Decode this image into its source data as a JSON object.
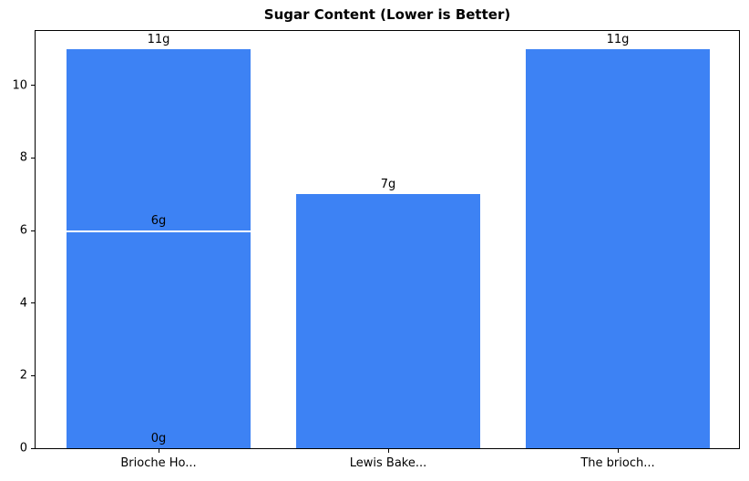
{
  "chart_data": {
    "type": "bar",
    "title": "Sugar Content (Lower is Better)",
    "categories": [
      "Brioche Ho...",
      "Lewis Bake...",
      "The brioch..."
    ],
    "bars": [
      {
        "category": "Brioche Ho...",
        "values": [
          11,
          6,
          0
        ],
        "labels": [
          "11g",
          "6g",
          "0g"
        ]
      },
      {
        "category": "Lewis Bake...",
        "values": [
          7
        ],
        "labels": [
          "7g"
        ]
      },
      {
        "category": "The brioch...",
        "values": [
          11
        ],
        "labels": [
          "11g"
        ]
      }
    ],
    "yticks": [
      0,
      2,
      4,
      6,
      8,
      10
    ],
    "ylim": [
      0,
      11.5
    ],
    "xlabel": "",
    "ylabel": "",
    "grid": false,
    "legend": false,
    "bar_color": "#3d82f4",
    "separator_color": "#ffffff",
    "axis_color": "#000000",
    "text_color": "#000000",
    "background_color": "#ffffff"
  }
}
